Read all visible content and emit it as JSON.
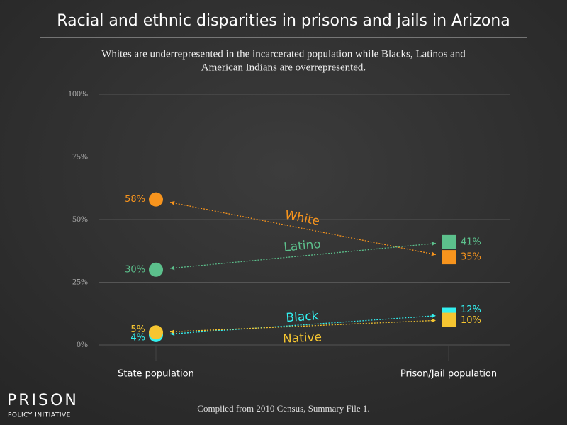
{
  "chart_data": {
    "type": "slope",
    "title": "Racial and ethnic disparities in prisons and jails in Arizona",
    "subtitle": [
      "Whites are underrepresented in the incarcerated population while Blacks, Latinos and",
      "American Indians are overrepresented."
    ],
    "categories": [
      "State population",
      "Prison/Jail population"
    ],
    "series": [
      {
        "name": "White",
        "color": "#f7941d",
        "values": [
          58,
          35
        ],
        "value_labels": [
          "58%",
          "35%"
        ]
      },
      {
        "name": "Latino",
        "color": "#5cc08c",
        "values": [
          30,
          41
        ],
        "value_labels": [
          "30%",
          "41%"
        ]
      },
      {
        "name": "Black",
        "color": "#33f0f0",
        "values": [
          4,
          12
        ],
        "value_labels": [
          "4%",
          "12%"
        ]
      },
      {
        "name": "Native",
        "color": "#f5c531",
        "values": [
          5,
          10
        ],
        "value_labels": [
          "5%",
          "10%"
        ]
      }
    ],
    "ylim": [
      0,
      100
    ],
    "yticks": [
      {
        "value": 0,
        "label": "0%"
      },
      {
        "value": 25,
        "label": "25%"
      },
      {
        "value": 50,
        "label": "50%"
      },
      {
        "value": 75,
        "label": "75%"
      },
      {
        "value": 100,
        "label": "100%"
      }
    ],
    "grid": true,
    "source": "Compiled from 2010 Census, Summary File 1.",
    "logo": [
      "PRISON",
      "POLICY INITIATIVE"
    ]
  }
}
